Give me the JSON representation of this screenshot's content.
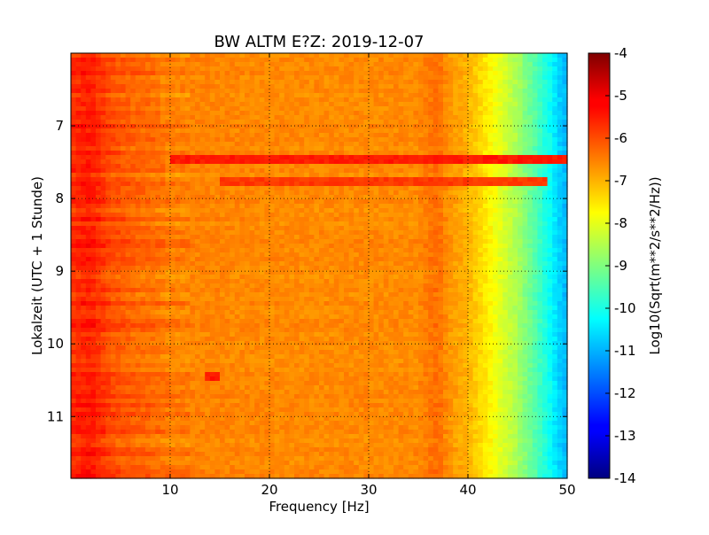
{
  "chart_data": {
    "type": "heatmap",
    "title": "BW ALTM E?Z: 2019-12-07",
    "xlabel": "Frequency [Hz]",
    "ylabel": "Lokalzeit (UTC + 1 Stunde)",
    "xlim": [
      0,
      50
    ],
    "ylim_hours": [
      6.0,
      11.85
    ],
    "y_inverted": true,
    "x_ticks": [
      "10",
      "20",
      "30",
      "40",
      "50"
    ],
    "y_ticks": [
      "7",
      "8",
      "9",
      "10",
      "11"
    ],
    "grid": true,
    "colormap": "jet",
    "colorbar": {
      "label": "Log10(Sqrt(m**2/s**2/Hz))",
      "range": [
        -14,
        -4
      ],
      "ticks": [
        "-4",
        "-5",
        "-6",
        "-7",
        "-8",
        "-9",
        "-10",
        "-11",
        "-12",
        "-13",
        "-14"
      ]
    },
    "spectrum_profile": {
      "frequency_hz": [
        0,
        2,
        4,
        6,
        8,
        10,
        20,
        30,
        35,
        37,
        38,
        40,
        42,
        45,
        48,
        49,
        50
      ],
      "log10_amplitude": [
        -5.7,
        -5.5,
        -6.0,
        -6.2,
        -6.3,
        -6.5,
        -6.6,
        -6.6,
        -6.6,
        -6.3,
        -6.7,
        -7.0,
        -7.6,
        -8.6,
        -10.0,
        -10.6,
        -11.0
      ]
    },
    "features": [
      {
        "time_h": 7.45,
        "freq_range_hz": [
          10,
          50
        ],
        "log10_amplitude": -5.5
      },
      {
        "time_h": 7.78,
        "freq_range_hz": [
          15,
          48
        ],
        "log10_amplitude": -5.8
      },
      {
        "time_h": 10.45,
        "freq_range_hz": [
          13.5,
          15
        ],
        "log10_amplitude": -5.5
      }
    ]
  }
}
